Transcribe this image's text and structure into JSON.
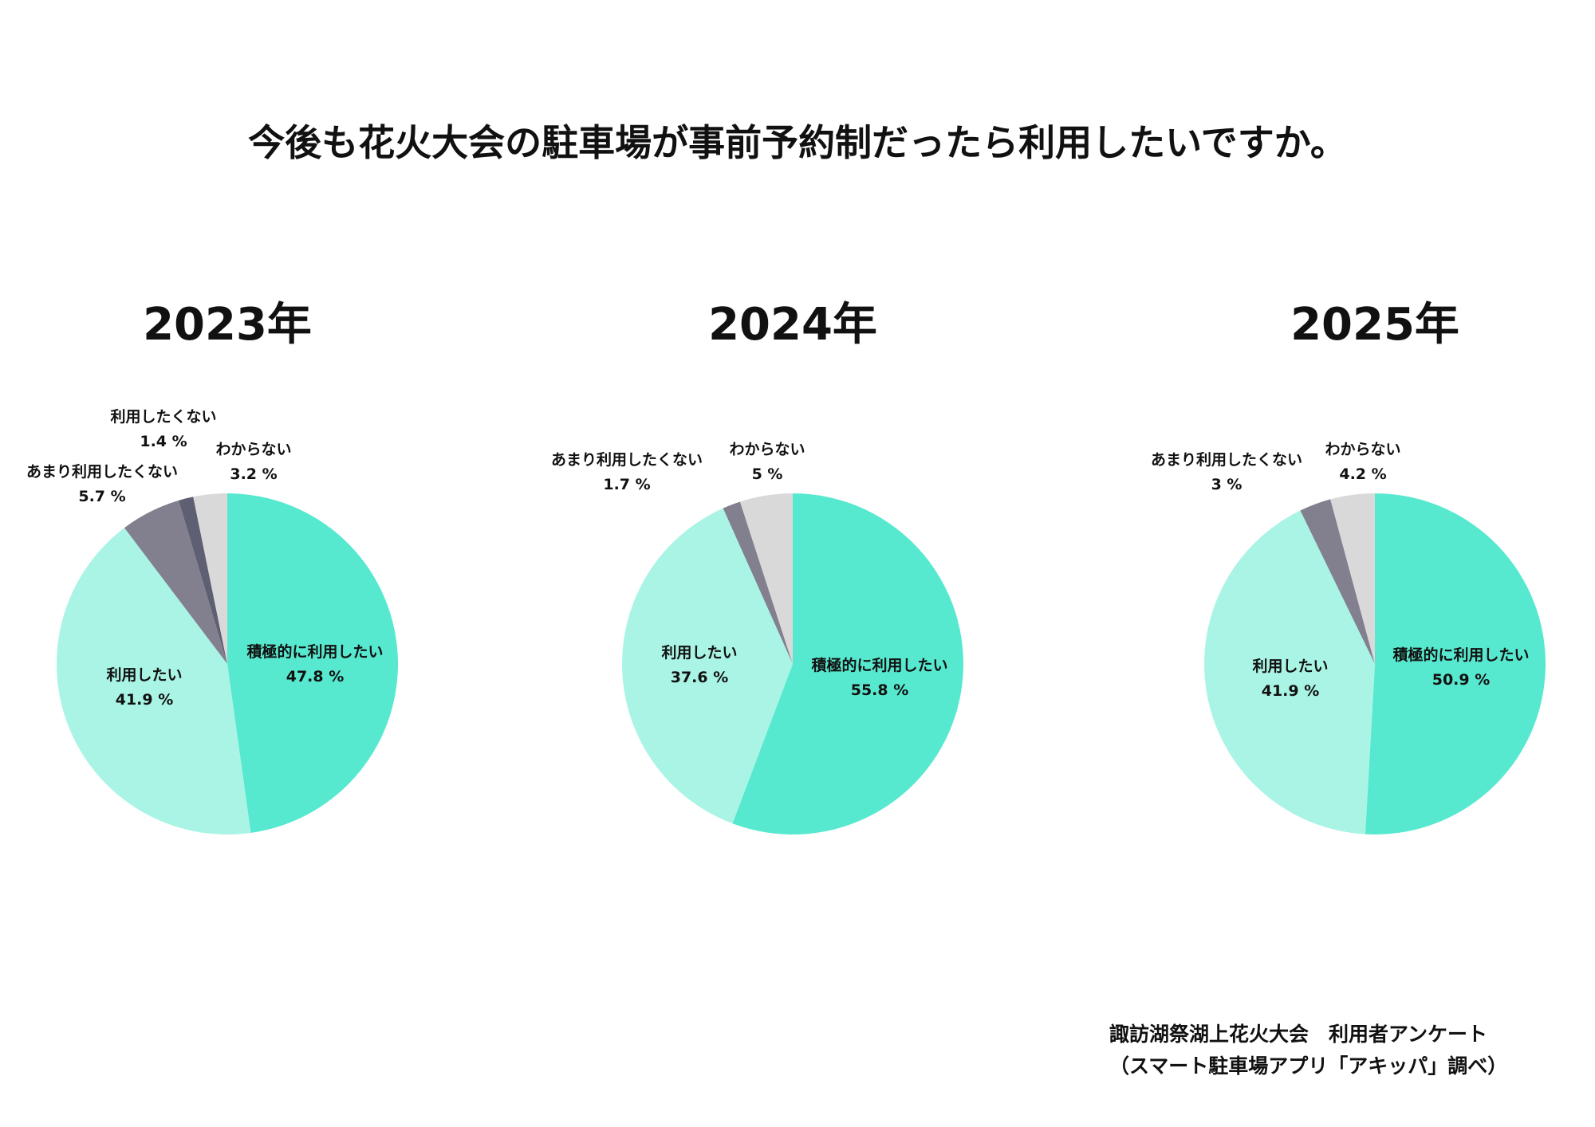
{
  "title": "今後も花火大会の駐車場が事前予約制だったら利用したいですか。",
  "footer": {
    "line1": "諏訪湖祭湖上花火大会　利用者アンケート",
    "line2": "（スマート駐車場アプリ「アキッパ」調べ）"
  },
  "colors": {
    "積極的に利用したい": "#57e9cf",
    "利用したい": "#aaf4e5",
    "あまり利用したくない": "#82808f",
    "利用したくない": "#5e5f72",
    "わからない": "#d9d9d9"
  },
  "chart_data": [
    {
      "type": "pie",
      "title": "2023年",
      "slices": [
        {
          "label": "積極的に利用したい",
          "value": 47.8,
          "value_label": "47.8 %"
        },
        {
          "label": "利用したい",
          "value": 41.9,
          "value_label": "41.9 %"
        },
        {
          "label": "あまり利用したくない",
          "value": 5.7,
          "value_label": "5.7 %"
        },
        {
          "label": "利用したくない",
          "value": 1.4,
          "value_label": "1.4 %"
        },
        {
          "label": "わからない",
          "value": 3.2,
          "value_label": "3.2 %"
        }
      ]
    },
    {
      "type": "pie",
      "title": "2024年",
      "slices": [
        {
          "label": "積極的に利用したい",
          "value": 55.8,
          "value_label": "55.8 %"
        },
        {
          "label": "利用したい",
          "value": 37.6,
          "value_label": "37.6 %"
        },
        {
          "label": "あまり利用したくない",
          "value": 1.7,
          "value_label": "1.7 %"
        },
        {
          "label": "わからない",
          "value": 5,
          "value_label": "5 %"
        }
      ]
    },
    {
      "type": "pie",
      "title": "2025年",
      "slices": [
        {
          "label": "積極的に利用したい",
          "value": 50.9,
          "value_label": "50.9 %"
        },
        {
          "label": "利用したい",
          "value": 41.9,
          "value_label": "41.9 %"
        },
        {
          "label": "あまり利用したくない",
          "value": 3,
          "value_label": "3 %"
        },
        {
          "label": "わからない",
          "value": 4.2,
          "value_label": "4.2 %"
        }
      ]
    }
  ]
}
